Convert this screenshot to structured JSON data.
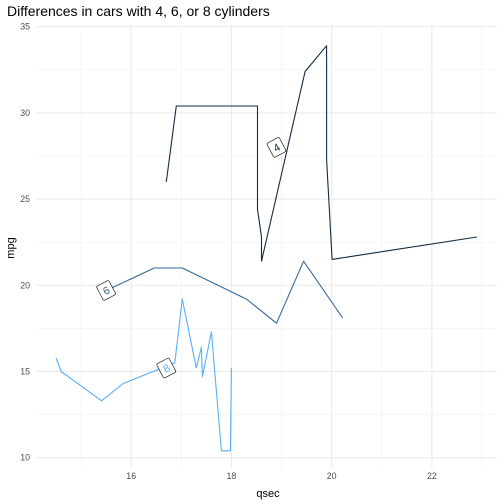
{
  "chart_data": {
    "type": "line",
    "title": "Differences in cars with 4, 6, or 8 cylinders",
    "xlabel": "qsec",
    "ylabel": "mpg",
    "xlim": [
      14.1,
      23.3
    ],
    "ylim": [
      9.4,
      35.1
    ],
    "x_ticks": [
      16,
      18,
      20,
      22
    ],
    "y_ticks": [
      10,
      15,
      20,
      25,
      30,
      35
    ],
    "grid": true,
    "legend": "none",
    "series": [
      {
        "name": "4",
        "color": "#132b43",
        "label_at": [
          18.9,
          28.0
        ],
        "x": [
          16.7,
          16.9,
          18.52,
          18.52,
          18.6,
          18.6,
          19.47,
          19.9,
          19.9,
          20.01,
          22.9
        ],
        "y": [
          26.0,
          30.4,
          30.4,
          24.4,
          22.8,
          21.4,
          32.4,
          33.9,
          27.3,
          21.5,
          22.8
        ]
      },
      {
        "name": "6",
        "color": "#336a98",
        "label_at": [
          15.5,
          19.7
        ],
        "x": [
          15.5,
          16.46,
          17.02,
          18.3,
          18.9,
          19.44,
          20.22
        ],
        "y": [
          19.7,
          21.0,
          21.0,
          19.2,
          17.8,
          21.4,
          18.1
        ],
        "label": "6"
      },
      {
        "name": "8",
        "color": "#56b1f7",
        "label_at": [
          16.7,
          15.2
        ],
        "x": [
          14.5,
          14.6,
          15.41,
          15.84,
          16.87,
          17.02,
          17.3,
          17.4,
          17.42,
          17.6,
          17.8,
          17.82,
          17.98,
          18.0,
          18.0
        ],
        "y": [
          15.8,
          15.0,
          13.3,
          14.3,
          15.5,
          19.2,
          15.2,
          16.4,
          14.7,
          17.3,
          10.4,
          10.4,
          10.4,
          15.2,
          15.2
        ]
      }
    ]
  }
}
